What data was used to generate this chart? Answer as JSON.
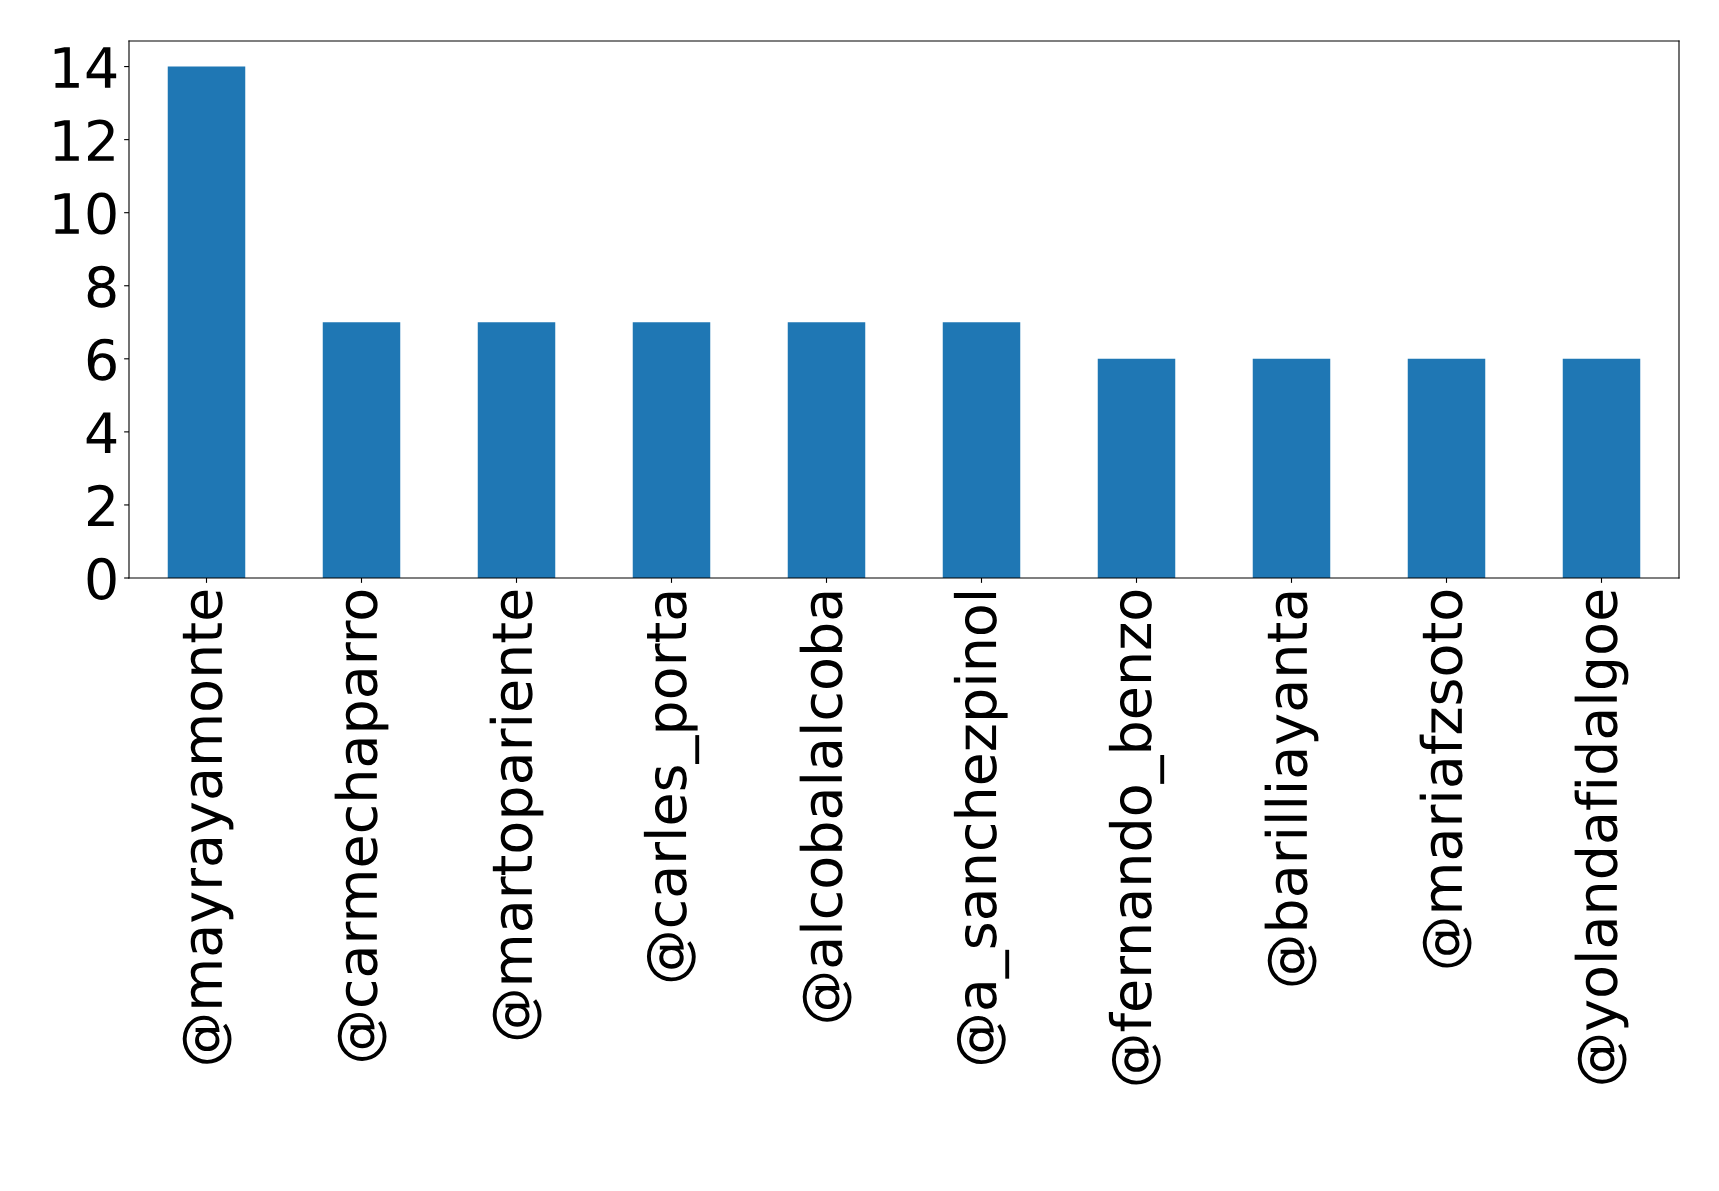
{
  "chart_data": {
    "type": "bar",
    "categories": [
      "@mayrayamonte",
      "@carmechaparro",
      "@martopariente",
      "@carles_porta",
      "@alcobalalcoba",
      "@a_sanchezpinol",
      "@fernando_benzo",
      "@barilliayanta",
      "@mariafzsoto",
      "@yolandafidalgoe"
    ],
    "values": [
      14,
      7,
      7,
      7,
      7,
      7,
      6,
      6,
      6,
      6
    ],
    "color": "#1f77b4",
    "ylim": [
      0,
      14.7
    ],
    "yticks": [
      0,
      2,
      4,
      6,
      8,
      10,
      12,
      14
    ],
    "grid": false,
    "legend": false
  }
}
